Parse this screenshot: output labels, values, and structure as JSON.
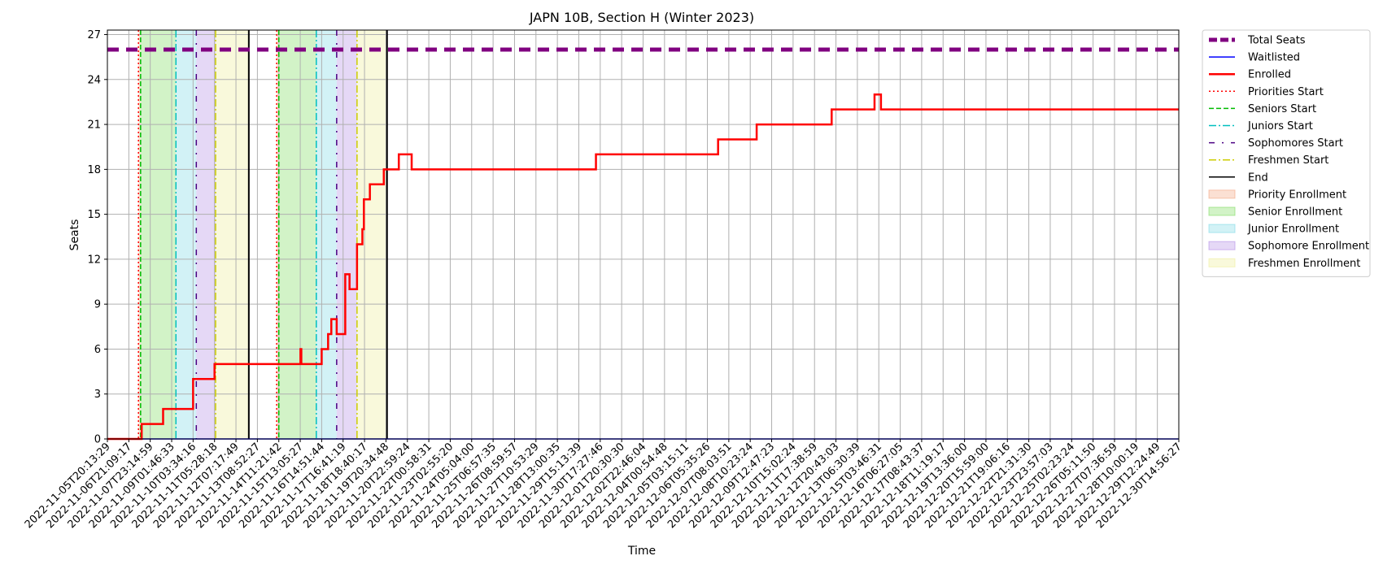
{
  "chart_data": {
    "type": "line",
    "title": "JAPN 10B, Section H (Winter 2023)",
    "xlabel": "Time",
    "ylabel": "Seats",
    "ylim": [
      0,
      27.3
    ],
    "yticks": [
      0,
      3,
      6,
      9,
      12,
      15,
      18,
      21,
      24,
      27
    ],
    "grid": true,
    "legend_position": "outside-right",
    "x_tick_labels": [
      "2022-11-05T20:13:29",
      "2022-11-06T21:09:17",
      "2022-11-07T23:14:59",
      "2022-11-09T01:46:33",
      "2022-11-10T03:34:16",
      "2022-11-11T05:28:18",
      "2022-11-12T07:17:49",
      "2022-11-13T08:52:27",
      "2022-11-14T11:21:42",
      "2022-11-15T13:05:27",
      "2022-11-16T14:51:44",
      "2022-11-17T16:41:19",
      "2022-11-18T18:40:17",
      "2022-11-19T20:34:48",
      "2022-11-20T22:59:24",
      "2022-11-22T00:58:31",
      "2022-11-23T02:55:20",
      "2022-11-24T05:04:00",
      "2022-11-25T06:57:35",
      "2022-11-26T08:59:57",
      "2022-11-27T10:53:29",
      "2022-11-28T13:00:35",
      "2022-11-29T15:13:39",
      "2022-11-30T17:27:46",
      "2022-12-01T20:30:30",
      "2022-12-02T22:46:04",
      "2022-12-04T00:54:48",
      "2022-12-05T03:15:11",
      "2022-12-06T05:35:26",
      "2022-12-07T08:03:51",
      "2022-12-08T10:23:24",
      "2022-12-09T12:47:23",
      "2022-12-10T15:02:24",
      "2022-12-11T17:38:59",
      "2022-12-12T20:43:03",
      "2022-12-13T06:30:39",
      "2022-12-15T03:46:31",
      "2022-12-16T06:27:05",
      "2022-12-17T08:43:37",
      "2022-12-18T11:19:17",
      "2022-12-19T13:36:00",
      "2022-12-20T15:59:00",
      "2022-12-21T19:06:16",
      "2022-12-22T21:31:30",
      "2022-12-23T23:57:03",
      "2022-12-25T02:23:24",
      "2022-12-26T05:11:50",
      "2022-12-27T07:36:59",
      "2022-12-28T10:00:19",
      "2022-12-29T12:24:49",
      "2022-12-30T14:56:27"
    ],
    "x_range_index": [
      0,
      50
    ],
    "series": [
      {
        "name": "Total Seats",
        "color": "#800080",
        "style": "dashed-thick",
        "x_index": [
          0,
          50
        ],
        "y": [
          26,
          26
        ]
      },
      {
        "name": "Waitlisted",
        "color": "#0000ff",
        "style": "solid",
        "x_index": [
          0,
          50
        ],
        "y": [
          0,
          0
        ]
      },
      {
        "name": "Enrolled",
        "color": "#ff0000",
        "style": "step",
        "x_index": [
          0,
          1.6,
          2.6,
          3.9,
          4.0,
          4.4,
          5.0,
          9.0,
          9.01,
          9.05,
          10.0,
          10.3,
          10.45,
          10.5,
          10.7,
          11.1,
          11.3,
          11.65,
          11.9,
          11.97,
          12.0,
          12.25,
          12.9,
          13.6,
          14.2,
          15.1,
          16.0,
          22.8,
          28.5,
          30.3,
          33.8,
          35.8,
          36.1,
          50
        ],
        "y": [
          0,
          1,
          2,
          2,
          4,
          4,
          5,
          5,
          6,
          5,
          6,
          7,
          8,
          8,
          7,
          11,
          10,
          13,
          14,
          16,
          16,
          17,
          18,
          19,
          18,
          18,
          18,
          19,
          20,
          21,
          22,
          23,
          22,
          22
        ]
      }
    ],
    "vertical_markers": [
      {
        "name": "Priorities Start",
        "color": "#ff0000",
        "style": "dotted",
        "x_index": [
          1.45,
          7.9
        ]
      },
      {
        "name": "Seniors Start",
        "color": "#00bb00",
        "style": "dashed",
        "x_index": [
          1.55,
          8.0
        ]
      },
      {
        "name": "Juniors Start",
        "color": "#00bfbf",
        "style": "dashdot",
        "x_index": [
          3.2,
          9.75
        ]
      },
      {
        "name": "Sophomores Start",
        "color": "#4b0082",
        "style": "dashdotted-sparse",
        "x_index": [
          4.15,
          10.7
        ]
      },
      {
        "name": "Freshmen Start",
        "color": "#cccc00",
        "style": "dashdot",
        "x_index": [
          5.05,
          11.65
        ]
      },
      {
        "name": "End",
        "color": "#000000",
        "style": "solid",
        "x_index": [
          6.6,
          13.05
        ]
      }
    ],
    "shaded_regions": [
      {
        "name": "Priority Enrollment",
        "color": "#f4a582",
        "ranges": [
          [
            1.45,
            1.55
          ],
          [
            7.9,
            8.0
          ]
        ]
      },
      {
        "name": "Senior Enrollment",
        "color": "#7fdc5f",
        "ranges": [
          [
            1.55,
            3.2
          ],
          [
            8.0,
            9.75
          ]
        ]
      },
      {
        "name": "Junior Enrollment",
        "color": "#7fd9e6",
        "ranges": [
          [
            3.2,
            4.15
          ],
          [
            9.75,
            10.7
          ]
        ]
      },
      {
        "name": "Sophomore Enrollment",
        "color": "#b48ee6",
        "ranges": [
          [
            4.15,
            5.05
          ],
          [
            10.7,
            11.65
          ]
        ]
      },
      {
        "name": "Freshmen Enrollment",
        "color": "#eeee99",
        "ranges": [
          [
            5.05,
            6.6
          ],
          [
            11.65,
            13.05
          ]
        ]
      }
    ],
    "legend": [
      "Total Seats",
      "Waitlisted",
      "Enrolled",
      "Priorities Start",
      "Seniors Start",
      "Juniors Start",
      "Sophomores Start",
      "Freshmen Start",
      "End",
      "Priority Enrollment",
      "Senior Enrollment",
      "Junior Enrollment",
      "Sophomore Enrollment",
      "Freshmen Enrollment"
    ]
  }
}
